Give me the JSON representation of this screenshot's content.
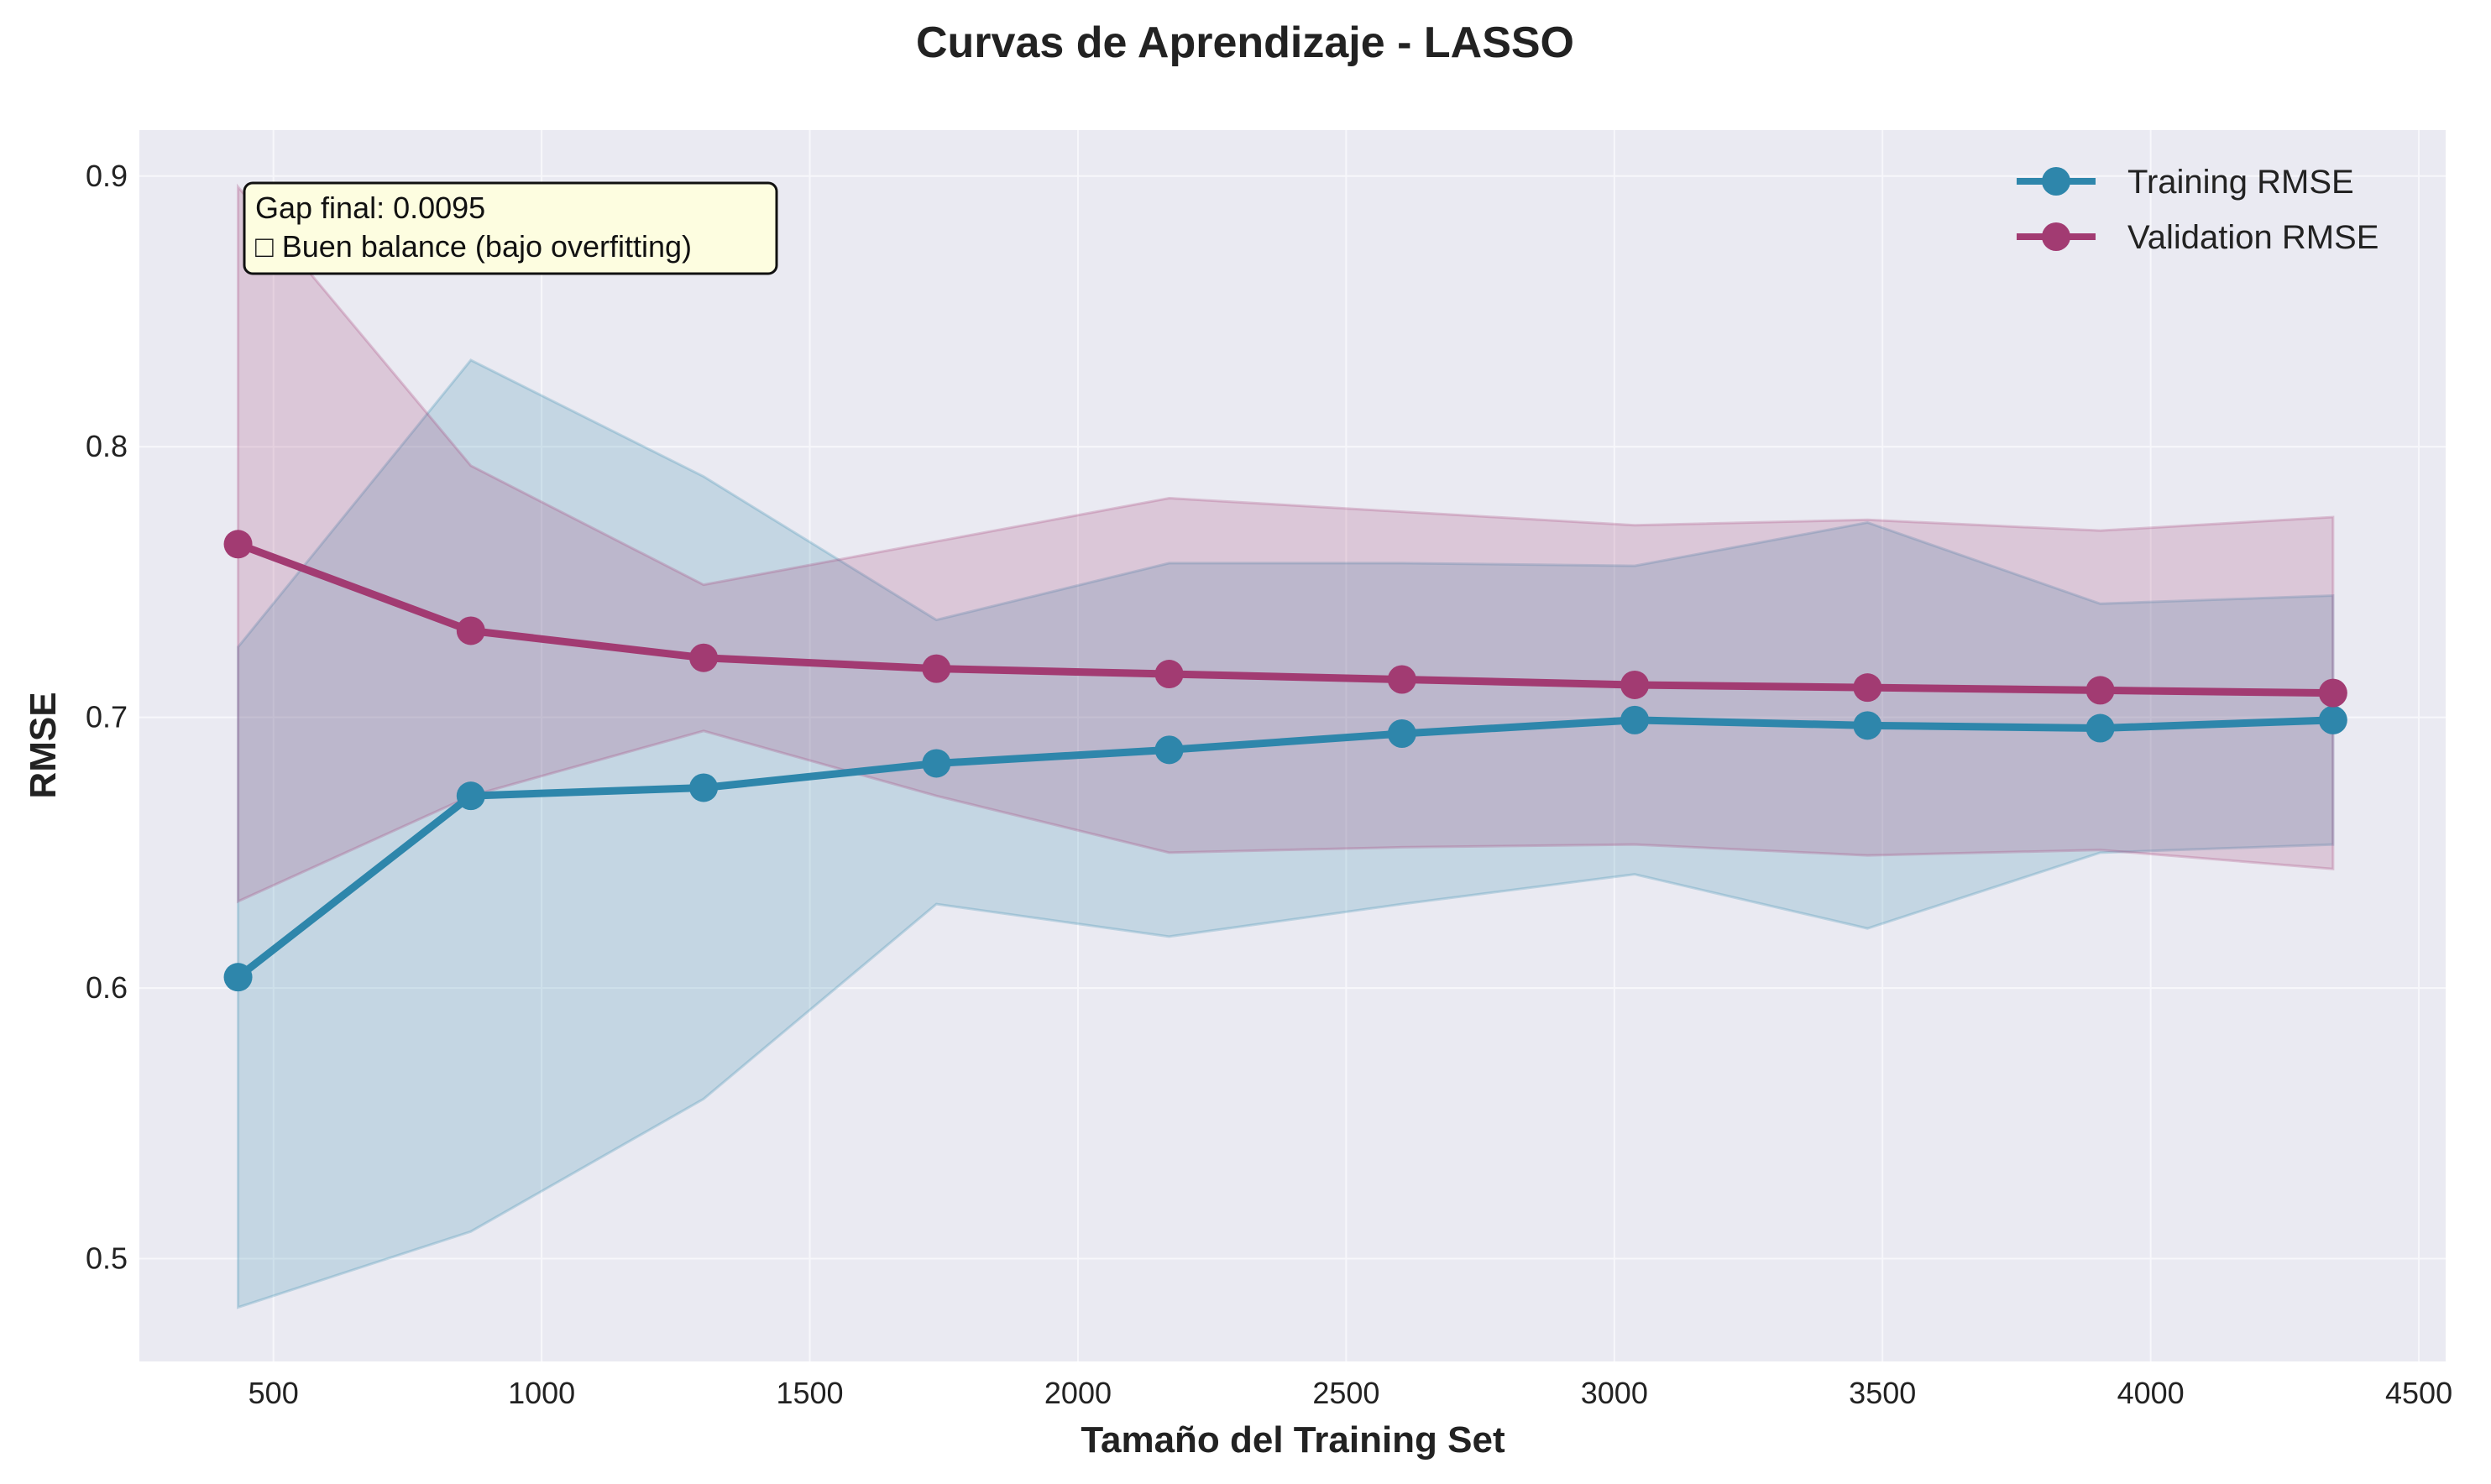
{
  "chart_data": {
    "type": "line",
    "title": "Curvas de Aprendizaje - LASSO",
    "xlabel": "Tamaño del Training Set",
    "ylabel": "RMSE",
    "xlim": [
      250,
      4550
    ],
    "ylim": [
      0.462,
      0.917
    ],
    "xticks": [
      500,
      1000,
      1500,
      2000,
      2500,
      3000,
      3500,
      4000,
      4500
    ],
    "yticks": [
      0.5,
      0.6,
      0.7,
      0.8,
      0.9
    ],
    "xtick_labels": [
      "500",
      "1000",
      "1500",
      "2000",
      "2500",
      "3000",
      "3500",
      "4000",
      "4500"
    ],
    "ytick_labels": [
      "0.5",
      "0.6",
      "0.7",
      "0.8",
      "0.9"
    ],
    "grid": true,
    "legend_position": "top-right",
    "x": [
      434,
      868,
      1302,
      1736,
      2170,
      2604,
      3038,
      3472,
      3906,
      4340
    ],
    "series": [
      {
        "name": "Training RMSE",
        "color": "#2e86ab",
        "values": [
          0.604,
          0.671,
          0.674,
          0.683,
          0.688,
          0.694,
          0.699,
          0.697,
          0.696,
          0.699
        ],
        "band_upper": [
          0.726,
          0.832,
          0.789,
          0.736,
          0.757,
          0.757,
          0.756,
          0.772,
          0.742,
          0.745
        ],
        "band_lower": [
          0.482,
          0.51,
          0.559,
          0.631,
          0.619,
          0.631,
          0.642,
          0.622,
          0.65,
          0.653
        ]
      },
      {
        "name": "Validation RMSE",
        "color": "#a23b72",
        "values": [
          0.764,
          0.732,
          0.722,
          0.718,
          0.716,
          0.714,
          0.712,
          0.711,
          0.71,
          0.709
        ],
        "band_upper": [
          0.896,
          0.793,
          0.749,
          0.765,
          0.781,
          0.776,
          0.771,
          0.773,
          0.769,
          0.774
        ],
        "band_lower": [
          0.632,
          0.671,
          0.695,
          0.671,
          0.65,
          0.652,
          0.653,
          0.649,
          0.651,
          0.644
        ]
      }
    ],
    "annotation": {
      "line1": "Gap final: 0.0095",
      "line2": "□ Buen balance (bajo overfitting)"
    }
  },
  "colors": {
    "plot_background": "#eaeaf2",
    "grid": "#f7f7fb",
    "annotation_fill": "#fdfde0"
  }
}
